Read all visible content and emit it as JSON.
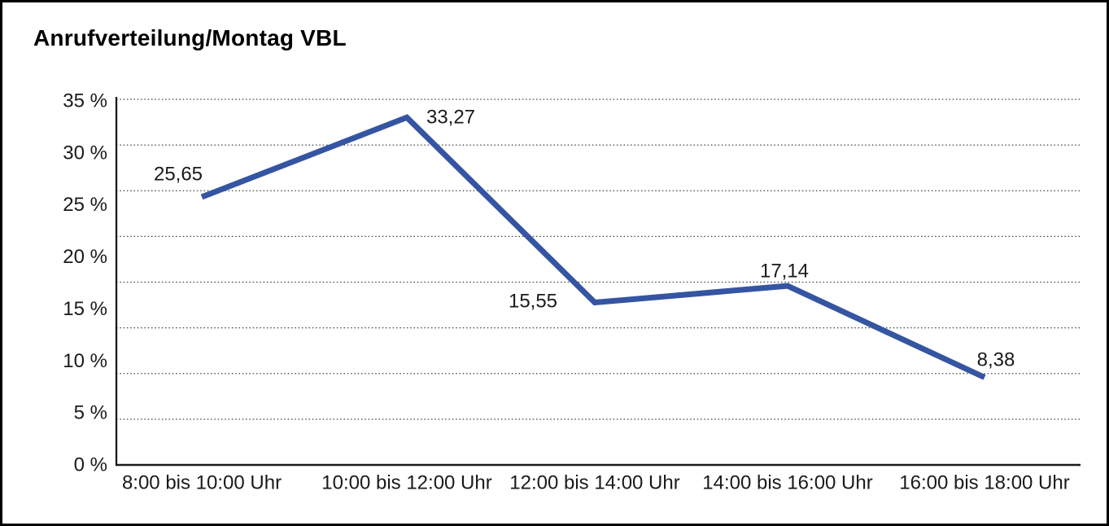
{
  "title": "Anrufverteilung/Montag VBL",
  "chart_data": {
    "type": "line",
    "title": "Anrufverteilung/Montag VBL",
    "categories": [
      "8:00 bis 10:00 Uhr",
      "10:00 bis 12:00 Uhr",
      "12:00 bis 14:00 Uhr",
      "14:00 bis 16:00 Uhr",
      "16:00 bis 18:00 Uhr"
    ],
    "values": [
      25.65,
      33.27,
      15.55,
      17.14,
      8.38
    ],
    "value_labels": [
      "25,65",
      "33,27",
      "15,55",
      "17,14",
      "8,38"
    ],
    "series_name": "Anrufverteilung Montag VBL",
    "xlabel": "",
    "ylabel": "",
    "y_ticks": [
      "35 %",
      "30 %",
      "25 %",
      "20 %",
      "15 %",
      "10 %",
      "5 %",
      "0 %"
    ],
    "ylim": [
      0,
      35
    ],
    "y_unit": "%",
    "grid": "horizontal-dotted",
    "legend": "none",
    "line_color": "#3555a2",
    "text_color": "#1a1a1a",
    "axis_color": "#1a1a1a"
  }
}
